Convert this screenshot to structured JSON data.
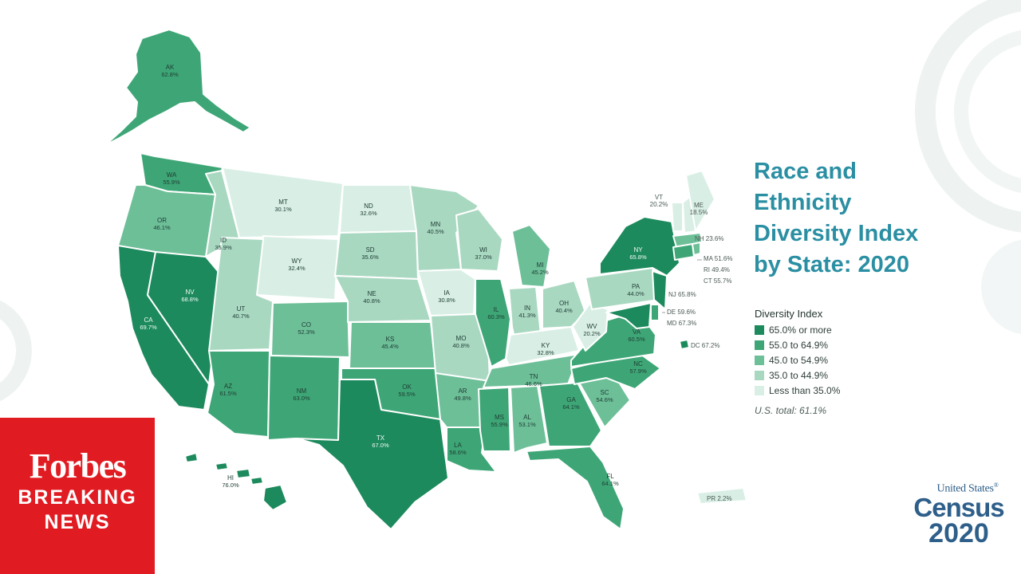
{
  "title_lines": [
    "Race and",
    "Ethnicity",
    "Diversity Index",
    "by State: 2020"
  ],
  "legend": {
    "title": "Diversity Index",
    "items": [
      {
        "label": "65.0% or more",
        "color": "#1c8a5c"
      },
      {
        "label": "55.0 to 64.9%",
        "color": "#3ea676"
      },
      {
        "label": "45.0 to 54.9%",
        "color": "#6dbf98"
      },
      {
        "label": "35.0 to 44.9%",
        "color": "#a9d8c1"
      },
      {
        "label": "Less than 35.0%",
        "color": "#d9efe5"
      }
    ],
    "us_total": "U.S. total: 61.1%"
  },
  "states": {
    "AK": "62.8%",
    "HI": "76.0%",
    "WA": "55.9%",
    "OR": "46.1%",
    "CA": "69.7%",
    "NV": "68.8%",
    "ID": "35.9%",
    "MT": "30.1%",
    "WY": "32.4%",
    "UT": "40.7%",
    "AZ": "61.5%",
    "CO": "52.3%",
    "NM": "63.0%",
    "ND": "32.6%",
    "SD": "35.6%",
    "NE": "40.8%",
    "KS": "45.4%",
    "OK": "59.5%",
    "TX": "67.0%",
    "MN": "40.5%",
    "IA": "30.8%",
    "MO": "40.8%",
    "AR": "49.8%",
    "LA": "58.6%",
    "WI": "37.0%",
    "IL": "60.3%",
    "MI": "45.2%",
    "IN": "41.3%",
    "OH": "40.4%",
    "KY": "32.8%",
    "TN": "46.6%",
    "MS": "55.9%",
    "AL": "53.1%",
    "GA": "64.1%",
    "FL": "64.1%",
    "SC": "54.6%",
    "NC": "57.9%",
    "VA": "60.5%",
    "WV": "20.2%",
    "PA": "44.0%",
    "NY": "65.8%",
    "VT": "20.2%",
    "ME": "18.5%",
    "NH": "23.6%",
    "MA": "51.6%",
    "RI": "49.4%",
    "CT": "55.7%",
    "NJ": "65.8%",
    "DE": "59.6%",
    "MD": "67.3%",
    "DC": "67.2%",
    "PR": "2.2%"
  },
  "logos": {
    "census": {
      "top": "United States",
      "mark": "®",
      "word": "Census",
      "year": "2020"
    },
    "forbes": {
      "name": "Forbes",
      "line1": "BREAKING",
      "line2": "NEWS"
    }
  },
  "colors": {
    "title": "#2b8fa3",
    "forbes_red": "#e11b22",
    "census_blue": "#2e5f8a"
  }
}
